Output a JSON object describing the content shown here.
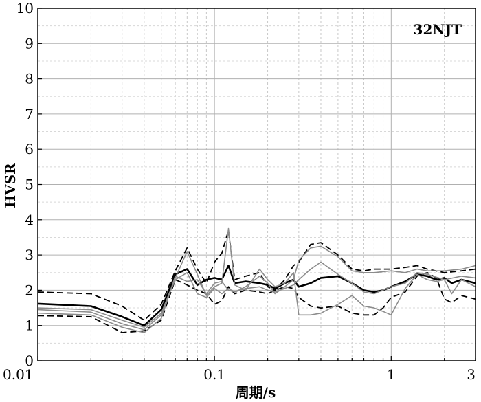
{
  "chart_data": {
    "type": "line",
    "xlabel": "周期/s",
    "ylabel": "HVSR",
    "xscale": "log",
    "xlim": [
      0.01,
      3
    ],
    "ylim": [
      0,
      10
    ],
    "grid": true,
    "annotation": "32NJT",
    "x_ticks": [
      {
        "value": 0.01,
        "label": "0.01"
      },
      {
        "value": 0.1,
        "label": "0.1"
      },
      {
        "value": 1,
        "label": "1"
      },
      {
        "value": 3,
        "label": "3"
      }
    ],
    "y_ticks": [
      {
        "value": 0,
        "label": "0"
      },
      {
        "value": 1,
        "label": "1"
      },
      {
        "value": 2,
        "label": "2"
      },
      {
        "value": 3,
        "label": "3"
      },
      {
        "value": 4,
        "label": "4"
      },
      {
        "value": 5,
        "label": "5"
      },
      {
        "value": 6,
        "label": "6"
      },
      {
        "value": 7,
        "label": "7"
      },
      {
        "value": 8,
        "label": "8"
      },
      {
        "value": 9,
        "label": "9"
      },
      {
        "value": 10,
        "label": "10"
      }
    ],
    "series": [
      {
        "style": "mean",
        "color": "#000000",
        "points": [
          [
            0.01,
            1.62
          ],
          [
            0.02,
            1.55
          ],
          [
            0.03,
            1.25
          ],
          [
            0.04,
            1.0
          ],
          [
            0.05,
            1.45
          ],
          [
            0.06,
            2.45
          ],
          [
            0.07,
            2.6
          ],
          [
            0.08,
            2.15
          ],
          [
            0.09,
            2.3
          ],
          [
            0.1,
            2.35
          ],
          [
            0.11,
            2.3
          ],
          [
            0.12,
            2.7
          ],
          [
            0.13,
            2.2
          ],
          [
            0.15,
            2.25
          ],
          [
            0.18,
            2.2
          ],
          [
            0.2,
            2.15
          ],
          [
            0.22,
            2.05
          ],
          [
            0.25,
            2.2
          ],
          [
            0.28,
            2.3
          ],
          [
            0.3,
            2.1
          ],
          [
            0.35,
            2.2
          ],
          [
            0.4,
            2.35
          ],
          [
            0.5,
            2.4
          ],
          [
            0.6,
            2.2
          ],
          [
            0.7,
            2.0
          ],
          [
            0.8,
            1.95
          ],
          [
            0.9,
            2.0
          ],
          [
            1.0,
            2.1
          ],
          [
            1.2,
            2.25
          ],
          [
            1.4,
            2.45
          ],
          [
            1.6,
            2.4
          ],
          [
            1.8,
            2.3
          ],
          [
            2.0,
            2.35
          ],
          [
            2.2,
            2.2
          ],
          [
            2.5,
            2.3
          ],
          [
            3.0,
            2.2
          ]
        ]
      },
      {
        "style": "upper-dashed",
        "color": "#000000",
        "points": [
          [
            0.01,
            1.95
          ],
          [
            0.02,
            1.9
          ],
          [
            0.03,
            1.55
          ],
          [
            0.04,
            1.15
          ],
          [
            0.05,
            1.6
          ],
          [
            0.06,
            2.55
          ],
          [
            0.07,
            3.2
          ],
          [
            0.08,
            2.6
          ],
          [
            0.09,
            2.2
          ],
          [
            0.1,
            2.8
          ],
          [
            0.11,
            3.05
          ],
          [
            0.12,
            3.7
          ],
          [
            0.13,
            2.3
          ],
          [
            0.15,
            2.4
          ],
          [
            0.18,
            2.5
          ],
          [
            0.2,
            2.1
          ],
          [
            0.22,
            2.0
          ],
          [
            0.25,
            2.3
          ],
          [
            0.28,
            2.7
          ],
          [
            0.3,
            2.8
          ],
          [
            0.35,
            3.3
          ],
          [
            0.4,
            3.35
          ],
          [
            0.5,
            3.0
          ],
          [
            0.6,
            2.6
          ],
          [
            0.7,
            2.55
          ],
          [
            0.8,
            2.6
          ],
          [
            1.0,
            2.6
          ],
          [
            1.2,
            2.65
          ],
          [
            1.4,
            2.7
          ],
          [
            1.6,
            2.6
          ],
          [
            2.0,
            2.5
          ],
          [
            2.5,
            2.55
          ],
          [
            3.0,
            2.6
          ]
        ]
      },
      {
        "style": "lower-dashed",
        "color": "#000000",
        "points": [
          [
            0.01,
            1.28
          ],
          [
            0.02,
            1.25
          ],
          [
            0.03,
            0.8
          ],
          [
            0.04,
            0.85
          ],
          [
            0.05,
            1.15
          ],
          [
            0.06,
            2.3
          ],
          [
            0.07,
            2.15
          ],
          [
            0.08,
            2.0
          ],
          [
            0.09,
            1.9
          ],
          [
            0.1,
            1.6
          ],
          [
            0.11,
            1.7
          ],
          [
            0.12,
            2.1
          ],
          [
            0.13,
            1.9
          ],
          [
            0.15,
            2.0
          ],
          [
            0.18,
            1.95
          ],
          [
            0.2,
            1.9
          ],
          [
            0.22,
            2.0
          ],
          [
            0.25,
            2.1
          ],
          [
            0.28,
            2.05
          ],
          [
            0.3,
            1.8
          ],
          [
            0.35,
            1.55
          ],
          [
            0.4,
            1.5
          ],
          [
            0.5,
            1.55
          ],
          [
            0.6,
            1.35
          ],
          [
            0.7,
            1.3
          ],
          [
            0.8,
            1.3
          ],
          [
            0.9,
            1.5
          ],
          [
            1.0,
            1.8
          ],
          [
            1.2,
            1.95
          ],
          [
            1.4,
            2.4
          ],
          [
            1.6,
            2.5
          ],
          [
            1.8,
            2.35
          ],
          [
            2.0,
            1.75
          ],
          [
            2.2,
            1.65
          ],
          [
            2.5,
            1.85
          ],
          [
            3.0,
            1.75
          ]
        ]
      },
      {
        "style": "component-ns",
        "color": "#8c8c8c",
        "points": [
          [
            0.01,
            1.45
          ],
          [
            0.02,
            1.38
          ],
          [
            0.03,
            1.05
          ],
          [
            0.04,
            0.88
          ],
          [
            0.05,
            1.3
          ],
          [
            0.06,
            2.35
          ],
          [
            0.07,
            3.1
          ],
          [
            0.08,
            2.45
          ],
          [
            0.09,
            1.85
          ],
          [
            0.1,
            2.1
          ],
          [
            0.11,
            2.2
          ],
          [
            0.12,
            3.75
          ],
          [
            0.13,
            2.15
          ],
          [
            0.15,
            2.0
          ],
          [
            0.18,
            2.6
          ],
          [
            0.2,
            2.3
          ],
          [
            0.22,
            2.1
          ],
          [
            0.25,
            2.2
          ],
          [
            0.28,
            2.5
          ],
          [
            0.3,
            1.3
          ],
          [
            0.35,
            1.3
          ],
          [
            0.4,
            1.35
          ],
          [
            0.5,
            1.6
          ],
          [
            0.6,
            1.85
          ],
          [
            0.7,
            1.55
          ],
          [
            0.8,
            1.5
          ],
          [
            0.9,
            1.4
          ],
          [
            1.0,
            1.3
          ],
          [
            1.2,
            2.05
          ],
          [
            1.4,
            2.45
          ],
          [
            1.6,
            2.3
          ],
          [
            1.8,
            2.25
          ],
          [
            2.0,
            2.3
          ],
          [
            2.2,
            1.9
          ],
          [
            2.5,
            2.3
          ],
          [
            3.0,
            2.1
          ]
        ]
      },
      {
        "style": "component-ew",
        "color": "#8c8c8c",
        "points": [
          [
            0.01,
            1.35
          ],
          [
            0.02,
            1.3
          ],
          [
            0.03,
            0.95
          ],
          [
            0.04,
            0.8
          ],
          [
            0.05,
            1.2
          ],
          [
            0.06,
            2.4
          ],
          [
            0.07,
            2.25
          ],
          [
            0.08,
            2.3
          ],
          [
            0.09,
            1.9
          ],
          [
            0.1,
            2.2
          ],
          [
            0.11,
            2.25
          ],
          [
            0.12,
            2.0
          ],
          [
            0.13,
            1.95
          ],
          [
            0.15,
            2.1
          ],
          [
            0.18,
            2.4
          ],
          [
            0.2,
            2.2
          ],
          [
            0.22,
            1.9
          ],
          [
            0.25,
            2.1
          ],
          [
            0.28,
            2.3
          ],
          [
            0.3,
            2.85
          ],
          [
            0.35,
            3.2
          ],
          [
            0.4,
            3.25
          ],
          [
            0.5,
            2.95
          ],
          [
            0.6,
            2.55
          ],
          [
            0.7,
            2.5
          ],
          [
            0.8,
            2.5
          ],
          [
            1.0,
            2.55
          ],
          [
            1.2,
            2.5
          ],
          [
            1.4,
            2.6
          ],
          [
            1.6,
            2.55
          ],
          [
            2.0,
            2.55
          ],
          [
            2.5,
            2.6
          ],
          [
            3.0,
            2.7
          ]
        ]
      },
      {
        "style": "component-ud",
        "color": "#8c8c8c",
        "points": [
          [
            0.01,
            1.5
          ],
          [
            0.02,
            1.45
          ],
          [
            0.03,
            1.15
          ],
          [
            0.04,
            0.95
          ],
          [
            0.05,
            1.35
          ],
          [
            0.06,
            2.3
          ],
          [
            0.07,
            2.5
          ],
          [
            0.08,
            1.9
          ],
          [
            0.09,
            1.8
          ],
          [
            0.1,
            2.05
          ],
          [
            0.11,
            1.9
          ],
          [
            0.12,
            2.05
          ],
          [
            0.13,
            1.95
          ],
          [
            0.15,
            2.05
          ],
          [
            0.18,
            2.1
          ],
          [
            0.2,
            2.0
          ],
          [
            0.22,
            1.95
          ],
          [
            0.25,
            2.05
          ],
          [
            0.28,
            2.15
          ],
          [
            0.3,
            2.3
          ],
          [
            0.35,
            2.6
          ],
          [
            0.4,
            2.8
          ],
          [
            0.5,
            2.45
          ],
          [
            0.6,
            2.2
          ],
          [
            0.7,
            1.95
          ],
          [
            0.8,
            1.9
          ],
          [
            1.0,
            2.1
          ],
          [
            1.2,
            2.2
          ],
          [
            1.4,
            2.5
          ],
          [
            1.6,
            2.45
          ],
          [
            2.0,
            2.3
          ],
          [
            2.5,
            2.4
          ],
          [
            3.0,
            2.35
          ]
        ]
      }
    ]
  }
}
